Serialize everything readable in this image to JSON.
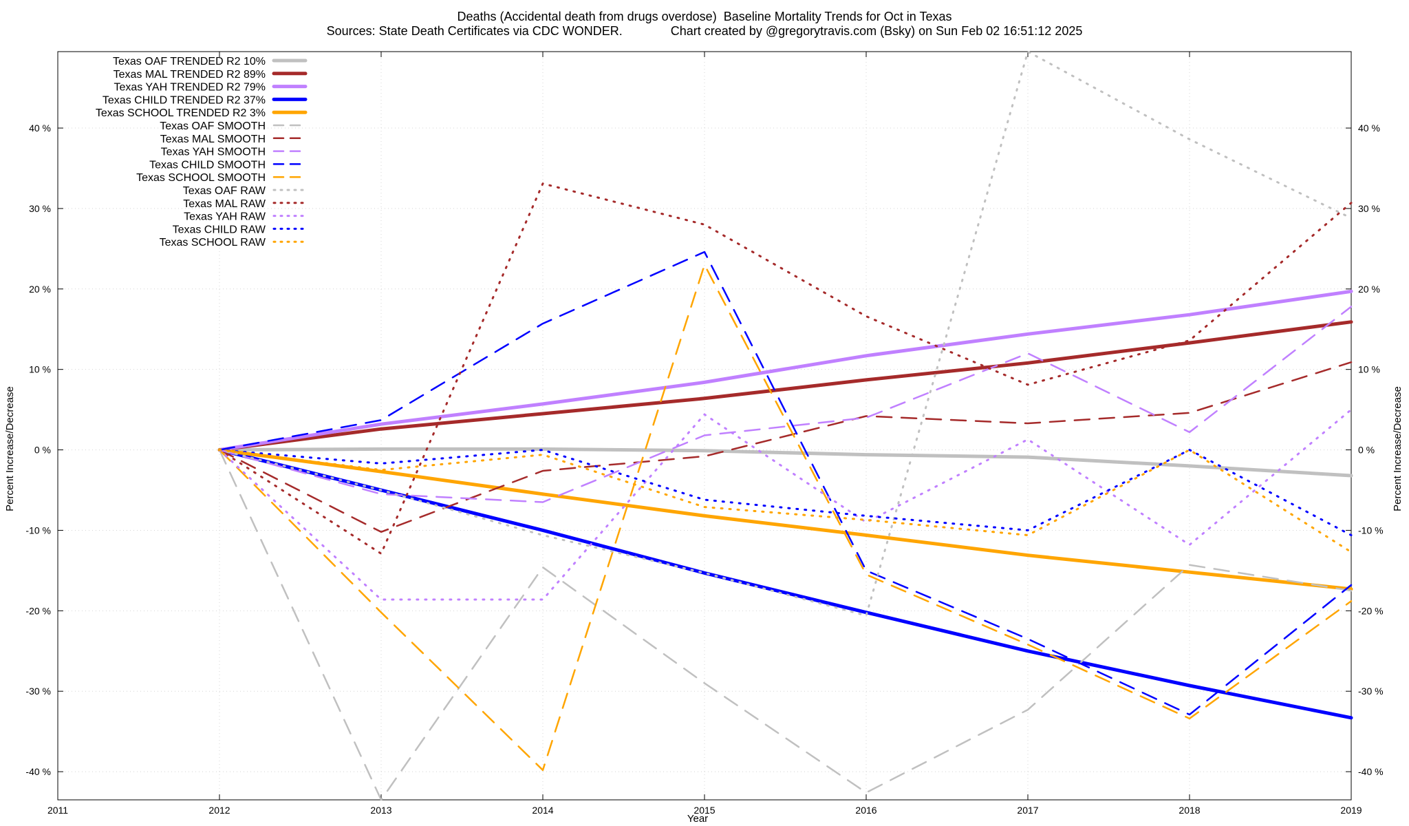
{
  "chart_data": {
    "type": "line",
    "title": "Deaths (Accidental death from drugs overdose)  Baseline Mortality Trends for Oct in Texas",
    "subtitle": "Sources: State Death Certificates via CDC WONDER.              Chart created by @gregorytravis.com (Bsky) on Sun Feb 02 16:51:12 2025",
    "xlabel": "Year",
    "ylabel": "Percent Increase/Decrease",
    "xlim": [
      2011,
      2019
    ],
    "ylim": [
      -43.5,
      49.5
    ],
    "x_ticks": [
      2011,
      2012,
      2013,
      2014,
      2015,
      2016,
      2017,
      2018,
      2019
    ],
    "x_tick_labels": [
      "2011",
      "2012",
      "2013",
      "2014",
      "2015",
      "2016",
      "2017",
      "2018",
      "2019"
    ],
    "y_ticks": [
      -40,
      -30,
      -20,
      -10,
      0,
      10,
      20,
      30,
      40
    ],
    "y_tick_labels": [
      "-40 %",
      "-30 %",
      "-20 %",
      "-10 %",
      "0 %",
      "10 %",
      "20 %",
      "30 %",
      "40 %"
    ],
    "grid": true,
    "legend_position": "top-left",
    "x": [
      2012,
      2013,
      2014,
      2015,
      2016,
      2017,
      2018,
      2019
    ],
    "series": [
      {
        "name": "Texas OAF TRENDED R2  10%",
        "color": "#c0c0c0",
        "style": "solid",
        "values": [
          0,
          0.1,
          0.1,
          -0.1,
          -0.6,
          -0.9,
          -2.0,
          -3.2
        ]
      },
      {
        "name": "Texas MAL TRENDED R2  89%",
        "color": "#a52a2a",
        "style": "solid",
        "values": [
          0,
          2.6,
          4.5,
          6.4,
          8.7,
          10.8,
          13.3,
          15.9
        ]
      },
      {
        "name": "Texas YAH TRENDED R2  79%",
        "color": "#c080ff",
        "style": "solid",
        "values": [
          0,
          3.2,
          5.7,
          8.4,
          11.7,
          14.4,
          16.8,
          19.7
        ]
      },
      {
        "name": "Texas CHILD TRENDED R2  37%",
        "color": "#0000ff",
        "style": "solid",
        "values": [
          0,
          -5.0,
          -10.0,
          -15.3,
          -20.2,
          -25.0,
          -29.3,
          -33.3
        ]
      },
      {
        "name": "Texas SCHOOL TRENDED R2  3%",
        "color": "#ffa500",
        "style": "solid",
        "values": [
          0,
          -2.7,
          -5.5,
          -8.2,
          -10.6,
          -13.1,
          -15.2,
          -17.3
        ]
      },
      {
        "name": "Texas OAF SMOOTH",
        "color": "#c0c0c0",
        "style": "dashed",
        "values": [
          0,
          -43.5,
          -14.6,
          -29.0,
          -42.6,
          -32.3,
          -14.3,
          -17.5
        ]
      },
      {
        "name": "Texas MAL SMOOTH",
        "color": "#a52a2a",
        "style": "dashed",
        "values": [
          0,
          -10.2,
          -2.6,
          -0.8,
          4.2,
          3.3,
          4.6,
          10.9
        ]
      },
      {
        "name": "Texas YAH SMOOTH",
        "color": "#c080ff",
        "style": "dashed",
        "values": [
          0,
          -5.5,
          -6.5,
          1.8,
          4.0,
          12.0,
          2.2,
          17.8
        ]
      },
      {
        "name": "Texas CHILD SMOOTH",
        "color": "#0000ff",
        "style": "dashed",
        "values": [
          0,
          3.7,
          15.7,
          24.6,
          -15.0,
          -23.5,
          -32.9,
          -16.8
        ]
      },
      {
        "name": "Texas SCHOOL SMOOTH",
        "color": "#ffa500",
        "style": "dashed",
        "values": [
          0,
          -20.2,
          -39.8,
          23.0,
          -15.5,
          -24.2,
          -33.4,
          -18.8
        ]
      },
      {
        "name": "Texas OAF RAW",
        "color": "#c0c0c0",
        "style": "dotted",
        "values": [
          0,
          -5.0,
          -10.6,
          -15.3,
          -20.6,
          49.5,
          38.6,
          28.8
        ]
      },
      {
        "name": "Texas MAL RAW",
        "color": "#a52a2a",
        "style": "dotted",
        "values": [
          0,
          -12.9,
          33.1,
          28.0,
          16.6,
          8.1,
          13.6,
          30.7
        ]
      },
      {
        "name": "Texas YAH RAW",
        "color": "#c080ff",
        "style": "dotted",
        "values": [
          0,
          -18.6,
          -18.6,
          4.4,
          -9.0,
          1.3,
          -11.8,
          5.0
        ]
      },
      {
        "name": "Texas CHILD RAW",
        "color": "#0000ff",
        "style": "dotted",
        "values": [
          0,
          -1.7,
          0.0,
          -6.2,
          -8.2,
          -10.0,
          0.0,
          -10.6
        ]
      },
      {
        "name": "Texas SCHOOL RAW",
        "color": "#ffa500",
        "style": "dotted",
        "values": [
          0,
          -2.5,
          -0.6,
          -7.1,
          -8.7,
          -10.6,
          0.0,
          -12.7
        ]
      }
    ]
  }
}
